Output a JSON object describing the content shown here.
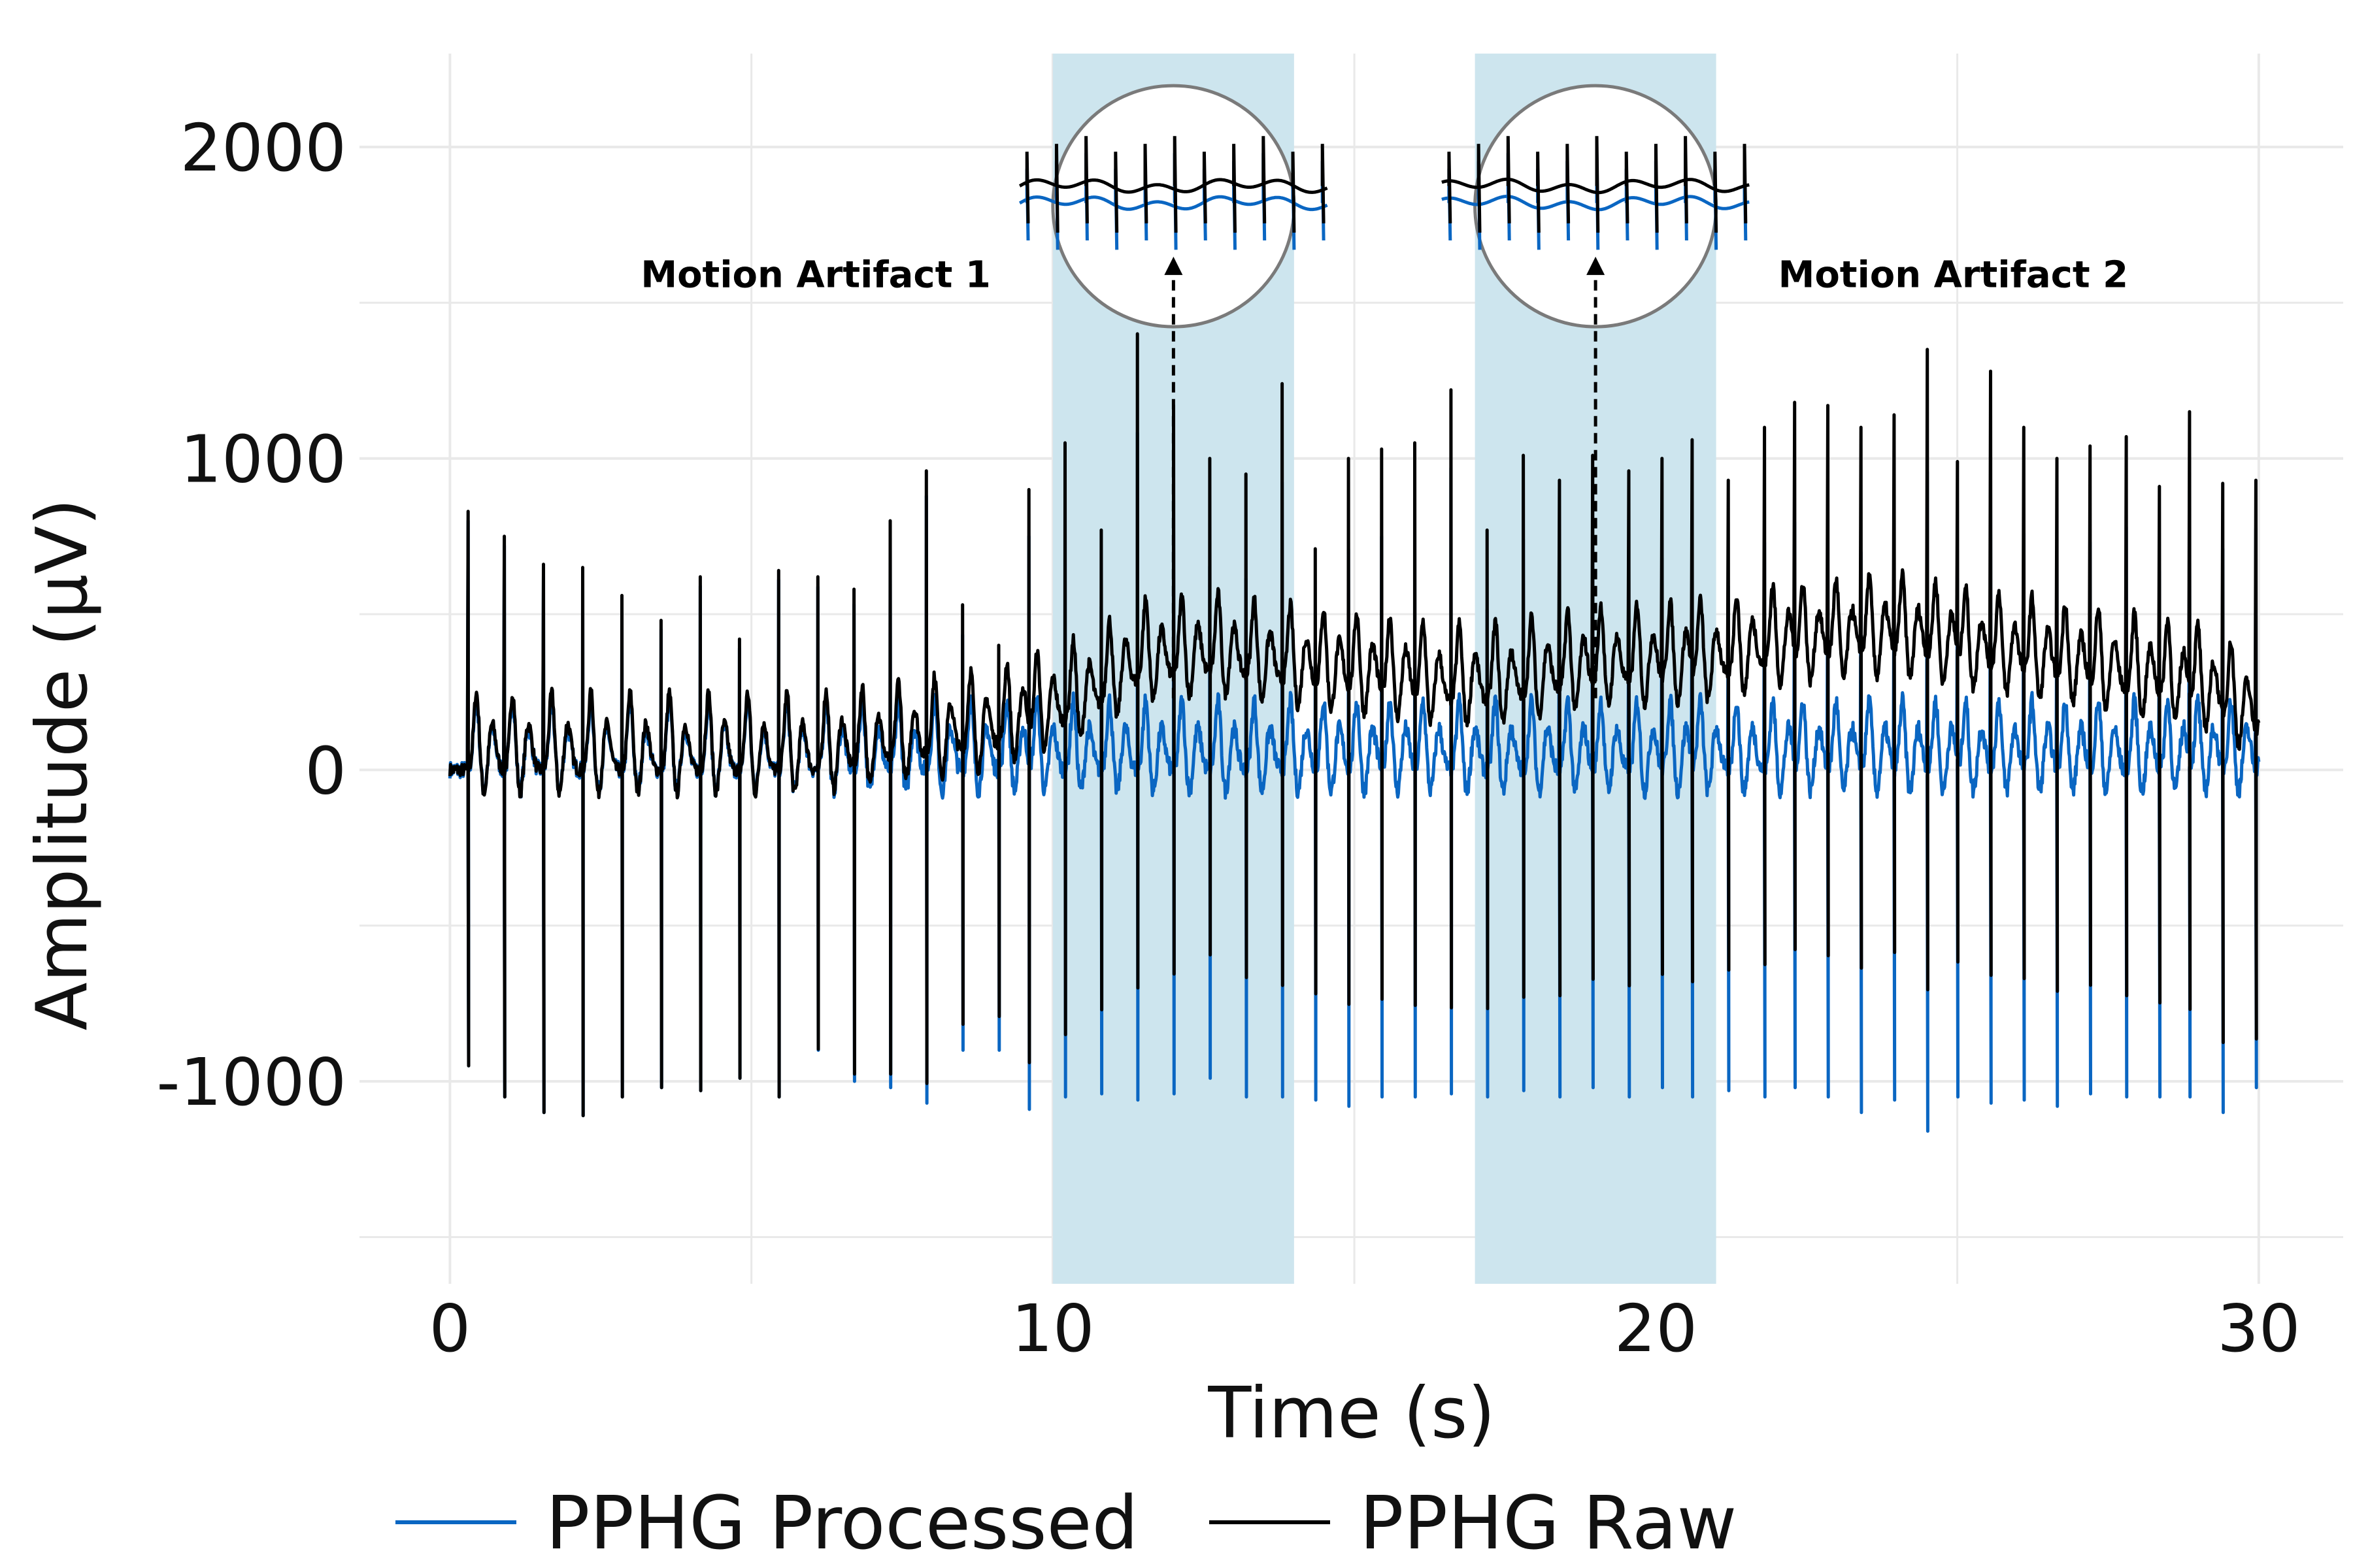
{
  "chart_data": {
    "type": "line",
    "xlabel": "Time (s)",
    "ylabel": "Amplitude (μV)",
    "xlim": [
      -1.5,
      31.4
    ],
    "ylim": [
      -1650,
      2300
    ],
    "x_ticks": [
      0,
      10,
      20,
      30
    ],
    "y_ticks": [
      -1000,
      0,
      1000,
      2000
    ],
    "grid": true,
    "legend_position": "bottom",
    "colors": {
      "processed": "#0a66c2",
      "raw": "#000000",
      "shade": "#cde5ee",
      "magnifier": "#7a7a7a"
    },
    "artifact_regions": [
      [
        10,
        14
      ],
      [
        17,
        21
      ]
    ],
    "annotations": [
      {
        "text": "Motion Artifact 1",
        "x": 12
      },
      {
        "text": "Motion Artifact 2",
        "x": 19
      }
    ],
    "signal": {
      "duration_s": 30,
      "beat_times": [
        0.3,
        0.9,
        1.55,
        2.2,
        2.85,
        3.5,
        4.15,
        4.8,
        5.45,
        6.1,
        6.7,
        7.3,
        7.9,
        8.5,
        9.1,
        9.6,
        10.2,
        10.8,
        11.4,
        12.0,
        12.6,
        13.2,
        13.8,
        14.35,
        14.9,
        15.45,
        16.0,
        16.6,
        17.2,
        17.8,
        18.4,
        18.95,
        19.55,
        20.1,
        20.6,
        21.2,
        21.8,
        22.3,
        22.85,
        23.4,
        23.95,
        24.5,
        25.0,
        25.55,
        26.1,
        26.65,
        27.2,
        27.8,
        28.35,
        28.85,
        29.4,
        29.95
      ],
      "raw_peaks": [
        830,
        750,
        660,
        650,
        560,
        480,
        620,
        420,
        640,
        620,
        580,
        800,
        960,
        530,
        400,
        900,
        1050,
        770,
        1400,
        1170,
        1000,
        950,
        1240,
        710,
        1000,
        1030,
        1050,
        1220,
        770,
        1010,
        930,
        1010,
        960,
        1000,
        1060,
        930,
        1100,
        1180,
        1170,
        1100,
        1140,
        1350,
        990,
        1280,
        1100,
        1000,
        1040,
        1070,
        910,
        1150,
        920,
        930
      ],
      "processed_troughs": [
        -950,
        -1050,
        -1100,
        -1110,
        -1050,
        -1020,
        -1030,
        -990,
        -1050,
        -900,
        -1000,
        -1020,
        -1070,
        -900,
        -900,
        -1090,
        -1050,
        -1040,
        -1060,
        -1040,
        -990,
        -1050,
        -1050,
        -1060,
        -1080,
        -1050,
        -1050,
        -1040,
        -1050,
        -1030,
        -1050,
        -1020,
        -1050,
        -1020,
        -1050,
        -1030,
        -1050,
        -1020,
        -1050,
        -1100,
        -1060,
        -1160,
        -1050,
        -1070,
        -1060,
        -1080,
        -1040,
        -1050,
        -1050,
        -1050,
        -1100,
        -1020
      ],
      "raw_baseline": {
        "t": [
          0,
          6,
          9,
          10.5,
          11.5,
          12.8,
          14,
          15.5,
          16.5,
          17.5,
          19,
          21,
          22,
          24,
          25.5,
          27.5,
          29,
          30
        ],
        "v": [
          0,
          0,
          80,
          180,
          300,
          320,
          280,
          250,
          220,
          230,
          280,
          300,
          350,
          380,
          330,
          270,
          220,
          120
        ]
      }
    }
  },
  "legend": {
    "processed_label": "PPHG Processed",
    "raw_label": "PPHG Raw"
  }
}
